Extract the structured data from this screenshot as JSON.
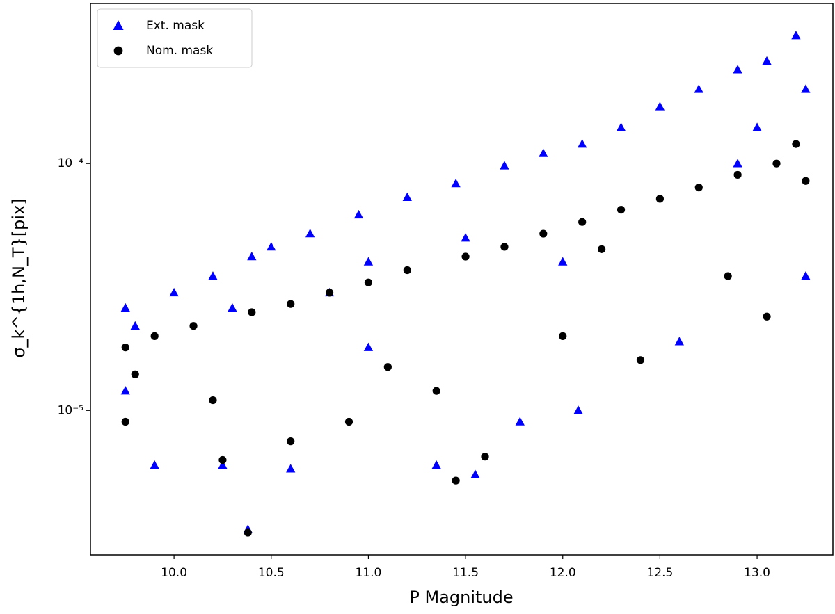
{
  "chart_data": {
    "type": "scatter",
    "xlabel": "P Magnitude",
    "ylabel": "σ_k^{1h,N_T}[pix]",
    "log_y": true,
    "legend": "upper left",
    "xlim": [
      9.57,
      13.39
    ],
    "ylim": [
      2.6e-06,
      0.000445
    ],
    "xticks": [
      {
        "value": 10,
        "label": "10.0"
      },
      10.5,
      {
        "value": 11,
        "label": "11.0"
      },
      11.5,
      {
        "value": 12,
        "label": "12.0"
      },
      12.5,
      {
        "value": 13,
        "label": "13.0"
      }
    ],
    "yticks": [
      {
        "value": 1e-05,
        "label": "10⁻⁵"
      },
      {
        "value": 0.0001,
        "label": "10⁻⁴"
      }
    ],
    "series": [
      {
        "name": "Ext. mask",
        "color": "#0000ff",
        "marker": "triangle",
        "x": [
          9.75,
          9.75,
          9.9,
          10.0,
          10.2,
          10.25,
          10.4,
          10.38,
          10.5,
          10.6,
          10.7,
          10.8,
          10.95,
          11.0,
          11.2,
          11.35,
          11.45,
          11.55,
          11.7,
          11.78,
          11.9,
          12.0,
          12.08,
          12.1,
          12.3,
          12.5,
          12.6,
          12.7,
          12.9,
          13.0,
          13.05,
          13.2,
          13.25,
          13.25,
          9.8,
          11.5,
          12.9,
          10.3,
          11.0
        ],
        "y": [
          2.6e-05,
          1.2e-05,
          6e-06,
          3e-05,
          3.5e-05,
          6e-06,
          4.2e-05,
          3.3e-06,
          4.6e-05,
          5.8e-06,
          5.2e-05,
          3e-05,
          6.2e-05,
          1.8e-05,
          7.3e-05,
          6e-06,
          8.3e-05,
          5.5e-06,
          9.8e-05,
          9e-06,
          0.00011,
          4e-05,
          1e-05,
          0.00012,
          0.00014,
          0.00017,
          1.9e-05,
          0.0002,
          0.00024,
          0.00014,
          0.00026,
          0.00033,
          0.0002,
          3.5e-05,
          2.2e-05,
          5e-05,
          0.0001,
          2.6e-05,
          4e-05
        ]
      },
      {
        "name": "Nom. mask",
        "color": "#000000",
        "marker": "circle",
        "x": [
          9.75,
          9.75,
          9.8,
          9.9,
          10.1,
          10.2,
          10.25,
          10.38,
          10.4,
          10.6,
          10.6,
          10.8,
          10.9,
          11.0,
          11.1,
          11.2,
          11.35,
          11.45,
          11.5,
          11.6,
          11.7,
          11.9,
          12.0,
          12.1,
          12.3,
          12.4,
          12.5,
          12.7,
          12.85,
          12.9,
          13.05,
          13.1,
          13.2,
          13.25,
          12.2
        ],
        "y": [
          1.8e-05,
          9e-06,
          1.4e-05,
          2e-05,
          2.2e-05,
          1.1e-05,
          6.3e-06,
          3.2e-06,
          2.5e-05,
          7.5e-06,
          2.7e-05,
          3e-05,
          9e-06,
          3.3e-05,
          1.5e-05,
          3.7e-05,
          1.2e-05,
          5.2e-06,
          4.2e-05,
          6.5e-06,
          4.6e-05,
          5.2e-05,
          2e-05,
          5.8e-05,
          6.5e-05,
          1.6e-05,
          7.2e-05,
          8e-05,
          3.5e-05,
          9e-05,
          2.4e-05,
          0.0001,
          0.00012,
          8.5e-05,
          4.5e-05
        ]
      }
    ]
  }
}
